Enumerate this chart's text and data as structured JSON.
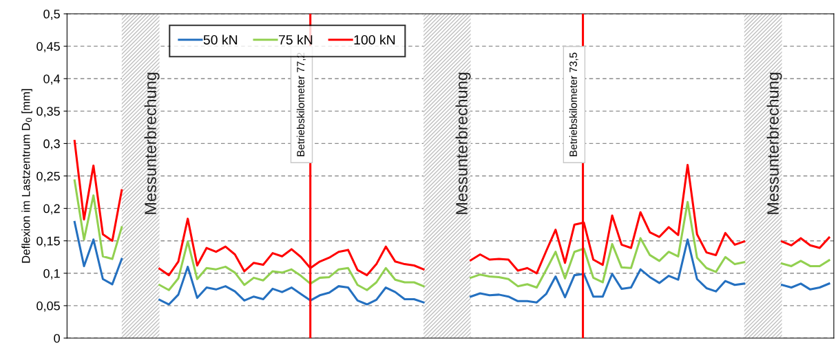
{
  "chart_data": {
    "type": "line",
    "ylabel": "Deflexion im Lastzentrum D$_{0}$ [mm]",
    "categories": [
      null,
      null,
      null,
      null,
      null,
      null,
      null,
      null,
      null,
      null,
      null,
      null,
      null,
      null,
      null,
      null,
      null,
      null,
      null,
      null,
      null,
      null,
      null,
      null,
      null,
      null,
      null,
      null,
      null,
      null,
      null,
      null,
      null,
      null,
      null,
      null,
      null,
      null,
      null,
      null,
      null,
      null,
      null,
      null,
      null,
      null,
      null,
      null,
      null,
      null,
      null,
      null,
      null,
      null,
      null,
      null,
      null,
      null,
      null,
      null,
      null,
      null,
      null,
      null,
      null,
      null,
      null,
      null,
      null,
      null,
      null,
      null,
      null,
      null,
      null,
      null,
      null,
      null,
      null,
      null,
      null
    ],
    "series": [
      {
        "name": "50 kN",
        "color": "#2470c0",
        "values": [
          0.179,
          0.111,
          0.152,
          0.091,
          0.083,
          0.122,
          null,
          null,
          null,
          0.059,
          0.052,
          0.067,
          0.11,
          0.062,
          0.078,
          0.075,
          0.08,
          0.072,
          0.058,
          0.064,
          0.06,
          0.076,
          0.071,
          0.078,
          0.068,
          0.058,
          0.066,
          0.07,
          0.08,
          0.078,
          0.058,
          0.052,
          0.059,
          0.078,
          0.071,
          0.06,
          0.06,
          0.055,
          null,
          null,
          null,
          null,
          0.064,
          0.069,
          0.066,
          0.067,
          0.064,
          0.057,
          0.057,
          0.055,
          0.068,
          0.095,
          0.063,
          0.097,
          0.099,
          0.064,
          0.064,
          0.099,
          0.076,
          0.078,
          0.106,
          0.094,
          0.085,
          0.096,
          0.09,
          0.152,
          0.091,
          0.077,
          0.072,
          0.088,
          0.082,
          0.084,
          null,
          null,
          null,
          0.082,
          0.078,
          0.084,
          0.075,
          0.078,
          0.084
        ]
      },
      {
        "name": "75 kN",
        "color": "#92d050",
        "values": [
          0.243,
          0.152,
          0.22,
          0.126,
          0.122,
          0.171,
          null,
          null,
          null,
          0.082,
          0.074,
          0.092,
          0.149,
          0.091,
          0.108,
          0.106,
          0.11,
          0.101,
          0.082,
          0.093,
          0.089,
          0.103,
          0.101,
          0.106,
          0.096,
          0.084,
          0.093,
          0.094,
          0.106,
          0.108,
          0.082,
          0.074,
          0.086,
          0.108,
          0.09,
          0.086,
          0.086,
          0.08,
          null,
          null,
          null,
          null,
          0.093,
          0.098,
          0.095,
          0.094,
          0.091,
          0.08,
          0.083,
          0.078,
          0.105,
          0.133,
          0.092,
          0.133,
          0.138,
          0.093,
          0.086,
          0.145,
          0.109,
          0.108,
          0.154,
          0.128,
          0.119,
          0.133,
          0.126,
          0.21,
          0.124,
          0.108,
          0.102,
          0.125,
          0.114,
          0.117,
          null,
          null,
          null,
          0.115,
          0.111,
          0.119,
          0.111,
          0.111,
          0.12
        ]
      },
      {
        "name": "100 kN",
        "color": "#ff0000",
        "values": [
          0.304,
          0.183,
          0.266,
          0.16,
          0.15,
          0.228,
          null,
          null,
          null,
          0.107,
          0.097,
          0.118,
          0.184,
          0.112,
          0.139,
          0.133,
          0.141,
          0.129,
          0.103,
          0.116,
          0.113,
          0.131,
          0.126,
          0.137,
          0.125,
          0.108,
          0.118,
          0.124,
          0.133,
          0.136,
          0.105,
          0.097,
          0.114,
          0.141,
          0.118,
          0.114,
          0.112,
          0.106,
          null,
          null,
          null,
          null,
          0.12,
          0.129,
          0.121,
          0.122,
          0.121,
          0.104,
          0.108,
          0.1,
          0.134,
          0.167,
          0.116,
          0.175,
          0.178,
          0.121,
          0.113,
          0.189,
          0.144,
          0.139,
          0.194,
          0.163,
          0.156,
          0.171,
          0.159,
          0.267,
          0.16,
          0.132,
          0.128,
          0.162,
          0.144,
          0.149,
          null,
          null,
          null,
          0.149,
          0.143,
          0.154,
          0.143,
          0.139,
          0.155
        ]
      }
    ],
    "ylim": [
      0,
      0.5
    ],
    "yticks": [
      0,
      {
        "value": 0.05,
        "label": "0,05"
      },
      {
        "value": 0.1,
        "label": "0,1"
      },
      {
        "value": 0.15,
        "label": "0,15"
      },
      {
        "value": 0.2,
        "label": "0,2"
      },
      {
        "value": 0.25,
        "label": "0,25"
      },
      {
        "value": 0.3,
        "label": "0,3"
      },
      {
        "value": 0.35,
        "label": "0,35"
      },
      {
        "value": 0.4,
        "label": "0,4"
      },
      {
        "value": 0.45,
        "label": "0,45"
      },
      {
        "value": 0.5,
        "label": "0,5"
      }
    ],
    "annotations": [
      "Messunterbrechung",
      "Betriebskilometer 77,2",
      "Messunterbrechung",
      "Betriebskilometer 73,5",
      "Messunterbrechung"
    ],
    "grid": "y",
    "legend": "top left",
    "marker": "none",
    "line_style": "solid"
  }
}
